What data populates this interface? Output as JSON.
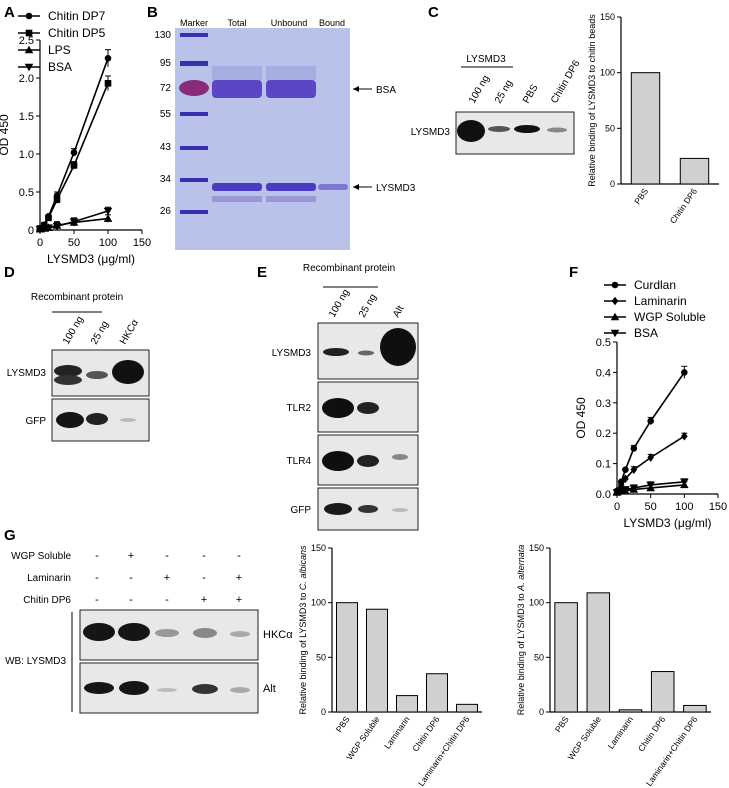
{
  "panels": {
    "A": "A",
    "B": "B",
    "C": "C",
    "D": "D",
    "E": "E",
    "F": "F",
    "G": "G"
  },
  "colors": {
    "bar_fill": "#d0d0d0",
    "gel_bg": "#b9c0e8",
    "band": "#5a4fb8",
    "blot_bg": "#e6e6e6",
    "band_dark": "#141414"
  },
  "chart_data": [
    {
      "id": "A",
      "type": "line",
      "xlabel": "LYSMD3 (μg/ml)",
      "ylabel": "OD 450",
      "xlim": [
        0,
        150
      ],
      "ylim": [
        0,
        2.5
      ],
      "xticks": [
        "0",
        "50",
        "100",
        "150"
      ],
      "yticks": [
        "0",
        "0.5",
        "1.0",
        "1.5",
        "2.0",
        "2.5"
      ],
      "legend_position": "top-left",
      "x": [
        0,
        6.25,
        12.5,
        25,
        50,
        100
      ],
      "series": [
        {
          "name": "Chitin DP7",
          "marker": "circle",
          "values": [
            0.02,
            0.07,
            0.18,
            0.45,
            1.02,
            2.26
          ]
        },
        {
          "name": "Chitin DP5",
          "marker": "square",
          "values": [
            0.02,
            0.06,
            0.16,
            0.4,
            0.85,
            1.93
          ]
        },
        {
          "name": "LPS",
          "marker": "triangle-up",
          "values": [
            0.01,
            0.02,
            0.03,
            0.06,
            0.1,
            0.15
          ]
        },
        {
          "name": "BSA",
          "marker": "triangle-down",
          "values": [
            0.01,
            0.02,
            0.03,
            0.05,
            0.11,
            0.25
          ]
        }
      ]
    },
    {
      "id": "C",
      "type": "bar",
      "ylabel": "Relative binding of LYSMD3 to chitin beads",
      "ylim": [
        0,
        150
      ],
      "yticks": [
        "0",
        "50",
        "100",
        "150"
      ],
      "categories": [
        "PBS",
        "Chitin DP6"
      ],
      "values": [
        100,
        23
      ]
    },
    {
      "id": "F",
      "type": "line",
      "xlabel": "LYSMD3 (μg/ml)",
      "ylabel": "OD 450",
      "xlim": [
        0,
        150
      ],
      "ylim": [
        0,
        0.5
      ],
      "xticks": [
        "0",
        "50",
        "100",
        "150"
      ],
      "yticks": [
        "0.0",
        "0.1",
        "0.2",
        "0.3",
        "0.4",
        "0.5"
      ],
      "legend_position": "top-left",
      "x": [
        0,
        6.25,
        12.5,
        25,
        50,
        100
      ],
      "series": [
        {
          "name": "Curdlan",
          "marker": "circle",
          "values": [
            0.01,
            0.04,
            0.08,
            0.15,
            0.24,
            0.4
          ]
        },
        {
          "name": "Laminarin",
          "marker": "diamond",
          "values": [
            0.01,
            0.03,
            0.05,
            0.08,
            0.12,
            0.19
          ]
        },
        {
          "name": "WGP Soluble",
          "marker": "triangle-up",
          "values": [
            0.005,
            0.01,
            0.01,
            0.015,
            0.02,
            0.03
          ]
        },
        {
          "name": "BSA",
          "marker": "triangle-down",
          "values": [
            0.005,
            0.01,
            0.015,
            0.02,
            0.03,
            0.04
          ]
        }
      ]
    },
    {
      "id": "G2",
      "type": "bar",
      "ylabel_prefix": "Relative binding of LYSMD3 to ",
      "ylabel_species": "C. albicans",
      "ylim": [
        0,
        150
      ],
      "yticks": [
        "0",
        "50",
        "100",
        "150"
      ],
      "categories": [
        "PBS",
        "WGP Soluble",
        "Laminarin",
        "Chitin DP6",
        "Laminarin+Chitin DP6"
      ],
      "values": [
        100,
        94,
        15,
        35,
        7
      ]
    },
    {
      "id": "G3",
      "type": "bar",
      "ylabel_prefix": "Relative binding of LYSMD3 to ",
      "ylabel_species": "A. alternata",
      "ylim": [
        0,
        150
      ],
      "yticks": [
        "0",
        "50",
        "100",
        "150"
      ],
      "categories": [
        "PBS",
        "WGP Soluble",
        "Laminarin",
        "Chitin DP6",
        "Laminarin+Chitin DP6"
      ],
      "values": [
        100,
        109,
        2,
        37,
        6
      ]
    }
  ],
  "gel_B": {
    "lane_labels": [
      "Marker",
      "Total",
      "Unbound",
      "Bound"
    ],
    "mw_labels": [
      "130",
      "95",
      "72",
      "55",
      "43",
      "34",
      "26"
    ],
    "band_labels": {
      "bsa": "BSA",
      "lysmd3": "LYSMD3"
    }
  },
  "blot_C": {
    "group_label": "LYSMD3",
    "lanes": [
      "100 ng",
      "25 ng",
      "PBS",
      "Chitin DP6"
    ],
    "row_label": "LYSMD3"
  },
  "blot_D": {
    "group_label": "Recombinant protein",
    "lanes": [
      "100 ng",
      "25 ng",
      "HKCα"
    ],
    "rows": [
      "LYSMD3",
      "GFP"
    ]
  },
  "blot_E": {
    "group_label": "Recombinant protein",
    "lanes": [
      "100 ng",
      "25 ng",
      "Alt"
    ],
    "rows": [
      "LYSMD3",
      "TLR2",
      "TLR4",
      "GFP"
    ]
  },
  "blot_G": {
    "conditions": [
      {
        "name": "WGP Soluble",
        "signs": [
          "-",
          "+",
          "-",
          "-",
          "-"
        ]
      },
      {
        "name": "Laminarin",
        "signs": [
          "-",
          "-",
          "+",
          "-",
          "+"
        ]
      },
      {
        "name": "Chitin DP6",
        "signs": [
          "-",
          "-",
          "-",
          "+",
          "+"
        ]
      }
    ],
    "rows": [
      "HKCα",
      "Alt"
    ],
    "wb_label": "WB: LYSMD3"
  }
}
